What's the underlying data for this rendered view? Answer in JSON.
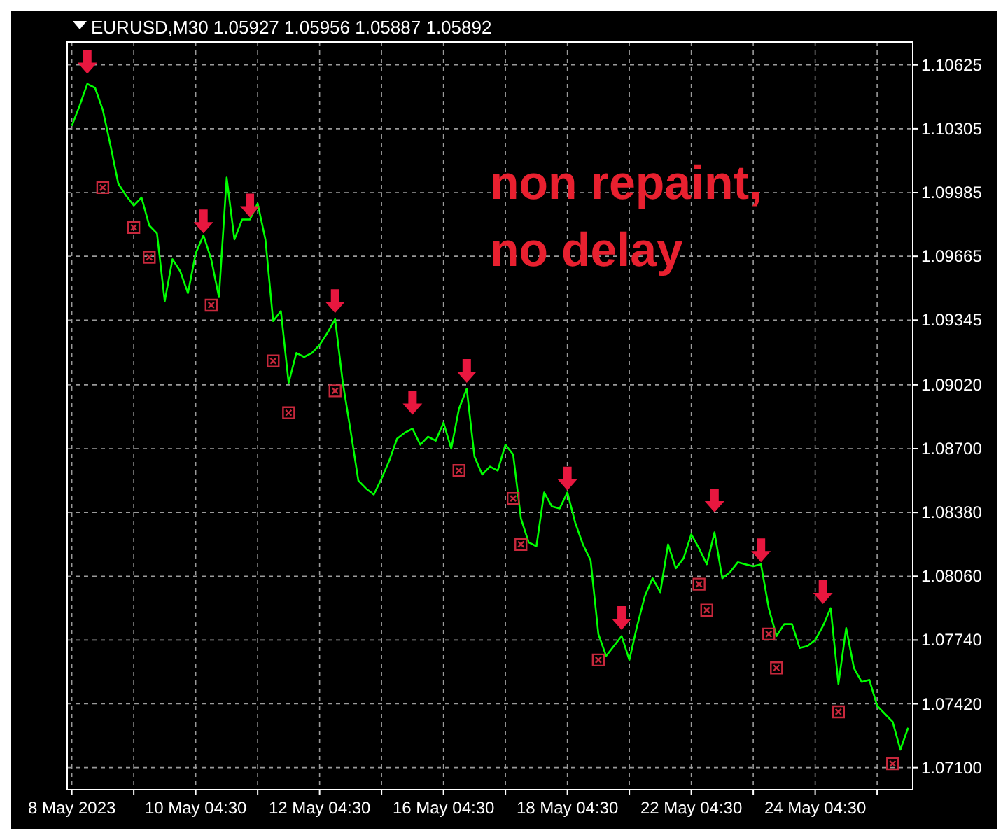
{
  "chart_data": {
    "type": "line",
    "title": "EURUSD,M30  1.05927 1.05956 1.05887 1.05892",
    "annotations": [
      "non repaint, no delay"
    ],
    "categories": [
      "8 May 2023",
      null,
      null,
      null,
      null,
      null,
      null,
      null,
      null,
      null,
      null,
      null,
      null,
      null,
      null,
      null,
      "10 May 04:30",
      null,
      null,
      null,
      null,
      null,
      null,
      null,
      null,
      null,
      null,
      null,
      null,
      null,
      null,
      null,
      "12 May 04:30",
      null,
      null,
      null,
      null,
      null,
      null,
      null,
      null,
      null,
      null,
      null,
      null,
      null,
      null,
      null,
      "16 May 04:30",
      null,
      null,
      null,
      null,
      null,
      null,
      null,
      null,
      null,
      null,
      null,
      null,
      null,
      null,
      null,
      "18 May 04:30",
      null,
      null,
      null,
      null,
      null,
      null,
      null,
      null,
      null,
      null,
      null,
      null,
      null,
      null,
      null,
      "22 May 04:30",
      null,
      null,
      null,
      null,
      null,
      null,
      null,
      null,
      null,
      null,
      null,
      null,
      null,
      null,
      null,
      "24 May 04:30",
      null,
      null,
      null,
      null,
      null,
      null,
      null,
      null,
      null,
      null,
      null,
      null
    ],
    "ylim": [
      1.0699,
      1.1074
    ],
    "yticks": [
      {
        "value": 1.10625,
        "label": "1.10625"
      },
      {
        "value": 1.10305,
        "label": "1.10305"
      },
      {
        "value": 1.09985,
        "label": "1.09985"
      },
      {
        "value": 1.09665,
        "label": "1.09665"
      },
      {
        "value": 1.09345,
        "label": "1.09345"
      },
      {
        "value": 1.0902,
        "label": "1.09020"
      },
      {
        "value": 1.087,
        "label": "1.08700"
      },
      {
        "value": 1.0838,
        "label": "1.08380"
      },
      {
        "value": 1.0806,
        "label": "1.08060"
      },
      {
        "value": 1.0774,
        "label": "1.07740"
      },
      {
        "value": 1.0742,
        "label": "1.07420"
      },
      {
        "value": 1.071,
        "label": "1.07100"
      }
    ],
    "grid": true,
    "series": [
      {
        "color": "#00ff00",
        "marker": "none",
        "line_style": "solid",
        "values": [
          1.1032,
          1.1042,
          1.1053,
          1.1051,
          1.104,
          1.1022,
          1.1003,
          1.0997,
          1.0992,
          1.0996,
          1.0982,
          1.0978,
          1.0944,
          1.0965,
          1.0959,
          1.0948,
          1.0968,
          1.0977,
          1.0965,
          1.0946,
          1.1006,
          1.0975,
          1.0985,
          1.0985,
          1.0993,
          1.0975,
          1.0934,
          1.0939,
          1.0903,
          1.0918,
          1.0916,
          1.0918,
          1.0922,
          1.0928,
          1.0935,
          1.0903,
          1.0879,
          1.0854,
          1.085,
          1.0847,
          1.0855,
          1.0864,
          1.0875,
          1.0878,
          1.088,
          1.0872,
          1.0876,
          1.0874,
          1.0883,
          1.087,
          1.089,
          1.09,
          1.0866,
          1.0857,
          1.0861,
          1.0859,
          1.0872,
          1.0867,
          1.0835,
          1.0823,
          1.0821,
          1.0848,
          1.0841,
          1.084,
          1.0848,
          1.0833,
          1.0822,
          1.0814,
          1.0777,
          1.0766,
          1.0771,
          1.0776,
          1.0764,
          1.0781,
          1.0796,
          1.0805,
          1.0798,
          1.0822,
          1.081,
          1.0815,
          1.0827,
          1.082,
          1.0812,
          1.0828,
          1.0805,
          1.0808,
          1.0813,
          1.0812,
          1.0811,
          1.0812,
          1.079,
          1.0776,
          1.0782,
          1.0782,
          1.077,
          1.0771,
          1.0774,
          1.0781,
          1.079,
          1.0752,
          1.078,
          1.076,
          1.0753,
          1.0754,
          1.0741,
          1.0737,
          1.0733,
          1.0719,
          1.073
        ]
      },
      {
        "type": "scatter",
        "color": "#e8173f",
        "values": [
          null,
          null,
          1.1064,
          null,
          null,
          null,
          null,
          null,
          null,
          null,
          null,
          null,
          null,
          null,
          null,
          null,
          null,
          1.0984,
          null,
          null,
          null,
          null,
          null,
          1.0992,
          null,
          null,
          null,
          null,
          null,
          null,
          null,
          null,
          null,
          null,
          1.0944,
          null,
          null,
          null,
          null,
          null,
          null,
          null,
          null,
          null,
          1.0893,
          null,
          null,
          null,
          null,
          null,
          null,
          1.0909,
          null,
          null,
          null,
          null,
          null,
          null,
          null,
          null,
          null,
          null,
          null,
          null,
          1.0855,
          null,
          null,
          null,
          null,
          null,
          null,
          1.0785,
          null,
          null,
          null,
          null,
          null,
          null,
          null,
          null,
          null,
          null,
          null,
          1.0844,
          null,
          null,
          null,
          null,
          null,
          1.0819,
          null,
          null,
          null,
          null,
          null,
          null,
          null,
          1.0798,
          null,
          null,
          null,
          null,
          null,
          null,
          null,
          null,
          null,
          null,
          null
        ]
      },
      {
        "type": "scatter",
        "color": "#c8283c",
        "marker": "cross",
        "values": [
          null,
          null,
          null,
          null,
          1.1001,
          null,
          null,
          null,
          1.0981,
          null,
          1.0966,
          null,
          null,
          null,
          null,
          null,
          null,
          null,
          1.0942,
          null,
          null,
          null,
          null,
          null,
          null,
          null,
          1.0914,
          null,
          1.0888,
          null,
          null,
          null,
          null,
          null,
          1.0899,
          null,
          null,
          null,
          null,
          null,
          null,
          null,
          null,
          null,
          null,
          null,
          null,
          null,
          null,
          null,
          1.0859,
          null,
          null,
          null,
          null,
          null,
          null,
          1.0845,
          1.0822,
          null,
          null,
          null,
          null,
          null,
          null,
          null,
          null,
          null,
          1.0764,
          null,
          null,
          null,
          null,
          null,
          null,
          null,
          null,
          null,
          null,
          null,
          null,
          1.0802,
          1.0789,
          null,
          null,
          null,
          null,
          null,
          null,
          null,
          1.0777,
          1.076,
          null,
          null,
          null,
          null,
          null,
          null,
          null,
          1.0738,
          null,
          null,
          null,
          null,
          null,
          null,
          1.0712,
          null,
          null
        ]
      }
    ]
  }
}
